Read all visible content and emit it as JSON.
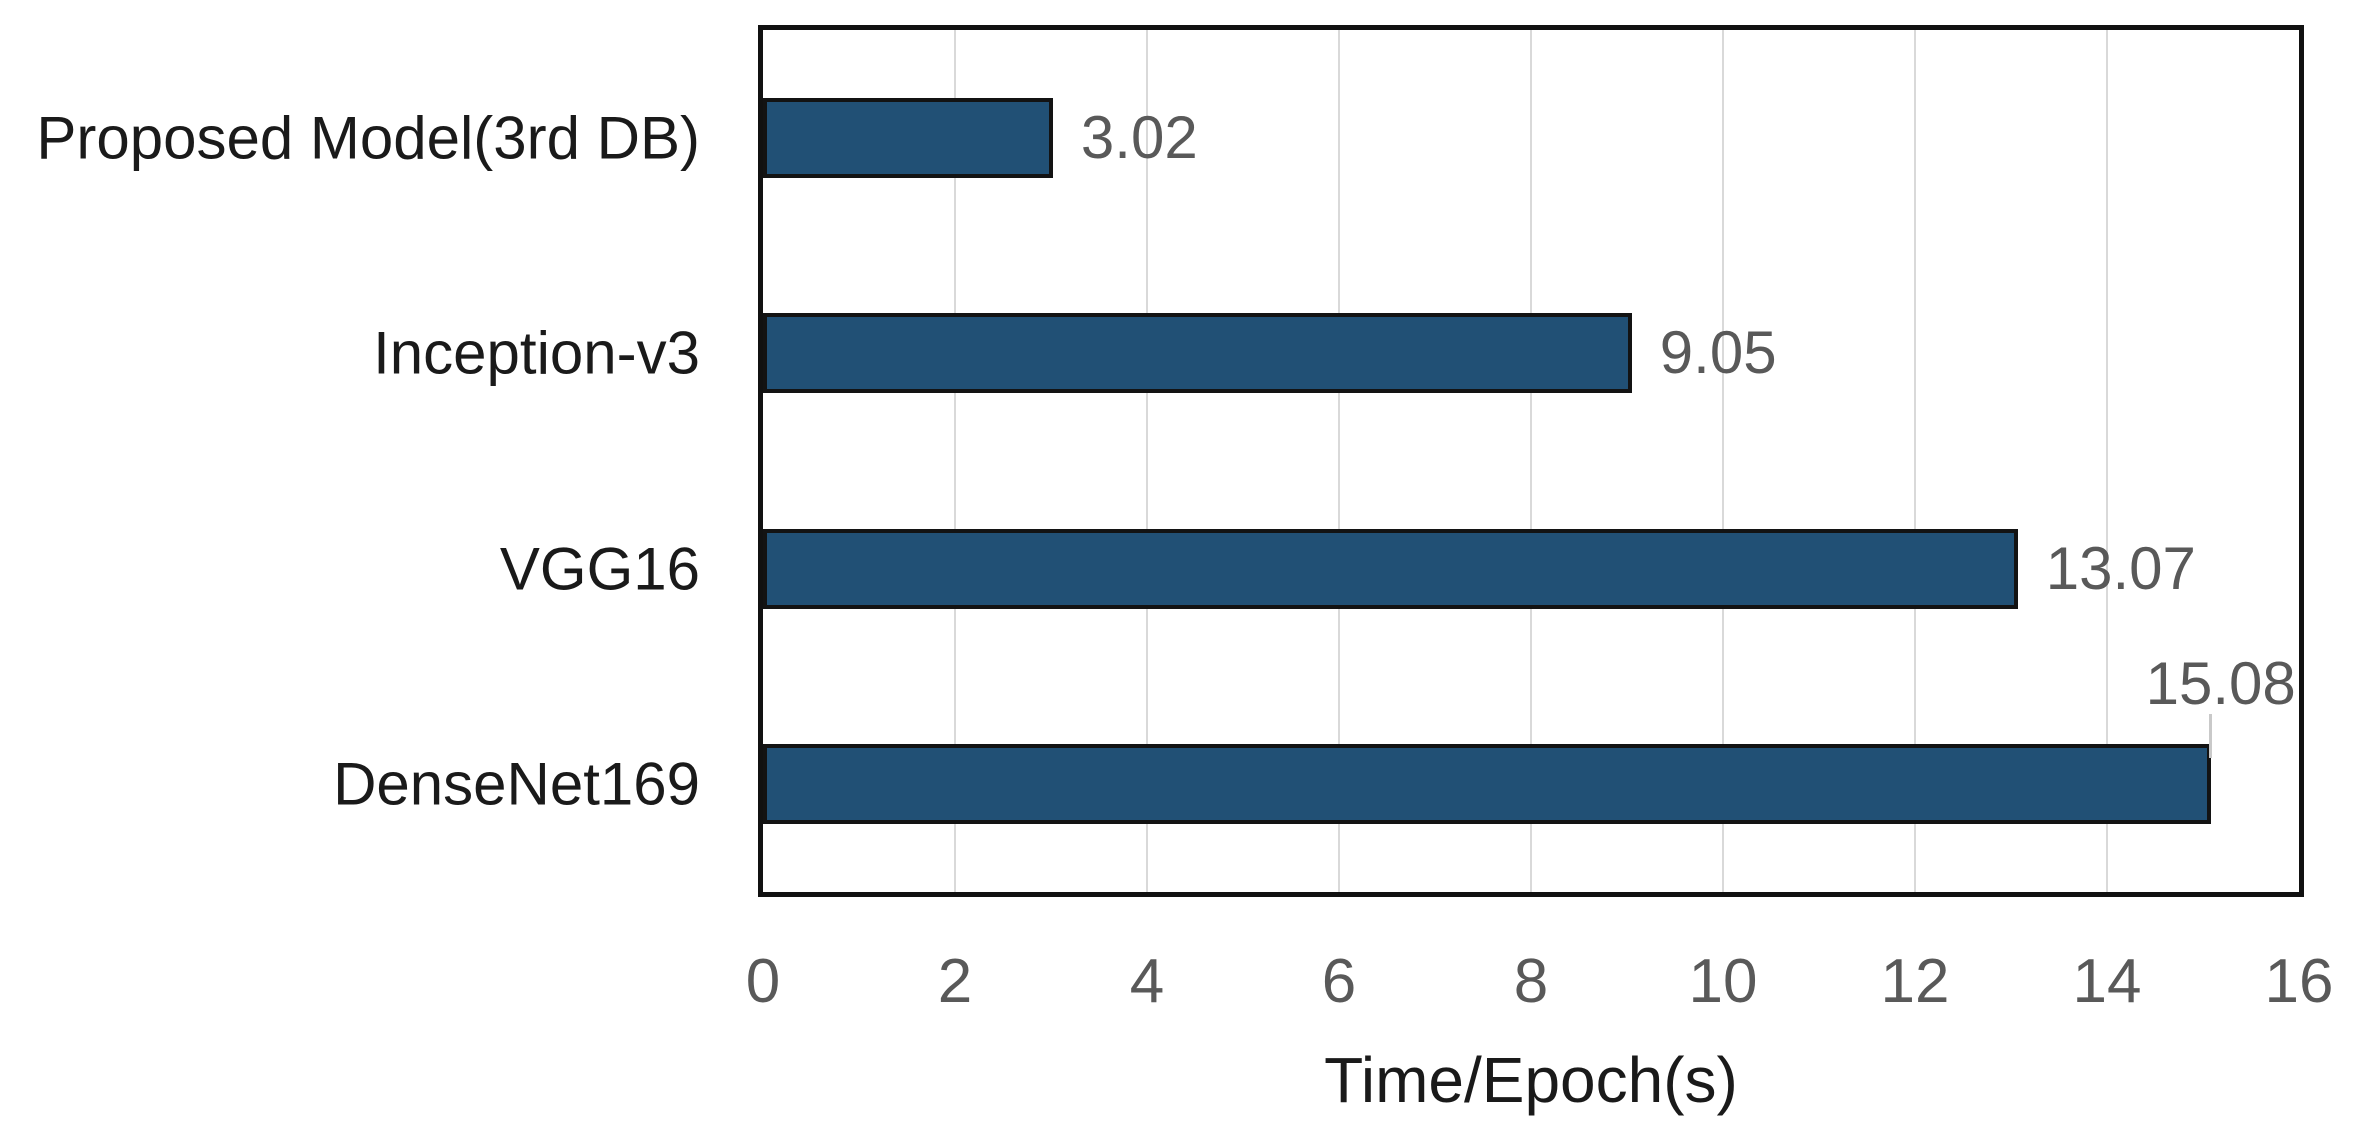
{
  "chart_data": {
    "type": "bar",
    "orientation": "horizontal",
    "title": "",
    "categories": [
      "Proposed Model(3rd DB)",
      "Inception-v3",
      "VGG16",
      "DenseNet169"
    ],
    "values": [
      3.02,
      9.05,
      13.07,
      15.08
    ],
    "value_labels": [
      "3.02",
      "9.05",
      "13.07",
      "15.08"
    ],
    "xlabel": "Time/Epoch(s)",
    "ylabel": "",
    "xlim": [
      0,
      16
    ],
    "xticks": [
      0,
      2,
      4,
      6,
      8,
      10,
      12,
      14,
      16
    ],
    "grid": "vertical",
    "legend": "none",
    "colors": {
      "bar_fill": "#215075",
      "bar_border": "#131313",
      "plot_border": "#111111",
      "gridline": "#d9d9d9",
      "value_label": "#595959",
      "tick_label": "#595959",
      "category_label": "#1a1a1a",
      "axis_title": "#1a1a1a",
      "background": "#ffffff"
    }
  }
}
